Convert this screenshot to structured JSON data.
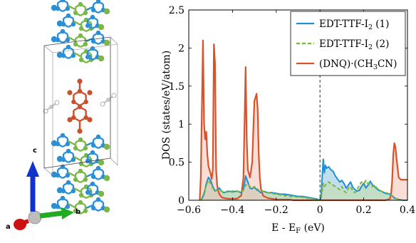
{
  "structure_panel": {
    "axis_a": "a",
    "axis_b": "b",
    "axis_c": "c",
    "colors": {
      "molecule_1": "#2b8fd6",
      "molecule_2": "#7ab648",
      "acceptor": "#c8502a",
      "solvent": "#c8c8c8",
      "axis_a": "#cc1111",
      "axis_b": "#22aa22",
      "axis_c": "#1133cc"
    }
  },
  "chart_data": {
    "type": "area",
    "xlabel_main": "E - E",
    "xlabel_sub": "F",
    "xlabel_unit": " (eV)",
    "ylabel": "DOS (states/eV/atom)",
    "xlim": [
      -0.6,
      0.4
    ],
    "ylim": [
      0,
      2.5
    ],
    "x_ticks": [
      -0.6,
      -0.4,
      -0.2,
      0,
      0.2,
      0.4
    ],
    "x_tick_labels": [
      "−0.6",
      "−0.4",
      "−0.2",
      "0",
      "0.2",
      "0.4"
    ],
    "y_ticks": [
      0,
      0.5,
      1,
      1.5,
      2,
      2.5
    ],
    "y_tick_labels": [
      "0",
      "0.5",
      "1",
      "1.5",
      "2",
      "2.5"
    ],
    "fermi_level": 0,
    "legend_position": "top-right",
    "series": [
      {
        "legend_parts": [
          "EDT-TTF-I",
          "2",
          " (1)"
        ],
        "color": "#1f8fd4",
        "fill": "#8ec3df",
        "style": "solid",
        "x": [
          -0.55,
          -0.54,
          -0.53,
          -0.52,
          -0.51,
          -0.5,
          -0.49,
          -0.48,
          -0.47,
          -0.46,
          -0.45,
          -0.44,
          -0.42,
          -0.4,
          -0.38,
          -0.36,
          -0.35,
          -0.34,
          -0.33,
          -0.32,
          -0.31,
          -0.3,
          -0.29,
          -0.28,
          -0.27,
          -0.26,
          -0.24,
          -0.22,
          -0.2,
          -0.18,
          -0.16,
          -0.14,
          -0.12,
          -0.1,
          -0.08,
          -0.06,
          -0.04,
          -0.02,
          0,
          0.005,
          0.01,
          0.015,
          0.02,
          0.025,
          0.03,
          0.04,
          0.05,
          0.06,
          0.07,
          0.08,
          0.09,
          0.1,
          0.11,
          0.12,
          0.13,
          0.14,
          0.15,
          0.16,
          0.17,
          0.18,
          0.19,
          0.2,
          0.21,
          0.22,
          0.23,
          0.24,
          0.25,
          0.26,
          0.27,
          0.28,
          0.3,
          0.32,
          0.33,
          0.34,
          0.35,
          0.36,
          0.38,
          0.4
        ],
        "y": [
          0,
          0.02,
          0.08,
          0.22,
          0.3,
          0.26,
          0.18,
          0.12,
          0.14,
          0.16,
          0.12,
          0.1,
          0.12,
          0.11,
          0.12,
          0.1,
          0.14,
          0.32,
          0.24,
          0.16,
          0.15,
          0.17,
          0.14,
          0.12,
          0.1,
          0.12,
          0.1,
          0.1,
          0.09,
          0.08,
          0.08,
          0.07,
          0.06,
          0.05,
          0.05,
          0.04,
          0.03,
          0.02,
          0,
          0.04,
          0.3,
          0.54,
          0.36,
          0.46,
          0.42,
          0.44,
          0.4,
          0.38,
          0.32,
          0.28,
          0.24,
          0.26,
          0.22,
          0.16,
          0.2,
          0.24,
          0.17,
          0.14,
          0.12,
          0.13,
          0.18,
          0.22,
          0.16,
          0.2,
          0.25,
          0.2,
          0.18,
          0.15,
          0.13,
          0.12,
          0.09,
          0.08,
          0.06,
          0.03,
          0.02,
          0.01,
          0,
          0
        ]
      },
      {
        "legend_parts": [
          "EDT-TTF-I",
          "2",
          " (2)"
        ],
        "color": "#7ab63a",
        "fill": "#c5dfa8",
        "style": "dashed",
        "x": [
          -0.55,
          -0.54,
          -0.53,
          -0.52,
          -0.51,
          -0.5,
          -0.49,
          -0.48,
          -0.47,
          -0.46,
          -0.45,
          -0.44,
          -0.42,
          -0.4,
          -0.38,
          -0.36,
          -0.35,
          -0.34,
          -0.33,
          -0.32,
          -0.31,
          -0.3,
          -0.29,
          -0.28,
          -0.27,
          -0.26,
          -0.24,
          -0.22,
          -0.2,
          -0.18,
          -0.16,
          -0.14,
          -0.12,
          -0.1,
          -0.08,
          -0.06,
          -0.04,
          -0.02,
          0,
          0.005,
          0.01,
          0.015,
          0.02,
          0.025,
          0.03,
          0.04,
          0.05,
          0.06,
          0.07,
          0.08,
          0.09,
          0.1,
          0.11,
          0.12,
          0.13,
          0.14,
          0.15,
          0.16,
          0.17,
          0.18,
          0.19,
          0.2,
          0.21,
          0.22,
          0.23,
          0.24,
          0.25,
          0.26,
          0.27,
          0.28,
          0.3,
          0.32,
          0.33,
          0.34,
          0.35,
          0.36,
          0.38,
          0.4
        ],
        "y": [
          0,
          0.03,
          0.1,
          0.2,
          0.26,
          0.22,
          0.16,
          0.12,
          0.13,
          0.14,
          0.12,
          0.1,
          0.11,
          0.12,
          0.12,
          0.11,
          0.13,
          0.2,
          0.22,
          0.18,
          0.16,
          0.18,
          0.16,
          0.13,
          0.11,
          0.12,
          0.1,
          0.09,
          0.08,
          0.07,
          0.06,
          0.05,
          0.05,
          0.04,
          0.04,
          0.03,
          0.02,
          0.01,
          0,
          0.02,
          0.12,
          0.22,
          0.18,
          0.2,
          0.22,
          0.24,
          0.22,
          0.2,
          0.18,
          0.16,
          0.14,
          0.18,
          0.12,
          0.1,
          0.16,
          0.18,
          0.12,
          0.1,
          0.14,
          0.2,
          0.24,
          0.22,
          0.26,
          0.22,
          0.2,
          0.18,
          0.2,
          0.16,
          0.14,
          0.12,
          0.1,
          0.08,
          0.06,
          0.04,
          0.02,
          0.01,
          0,
          0
        ]
      },
      {
        "legend_parts": [
          "(DNQ)·(CH",
          "3",
          "CN)"
        ],
        "color": "#d9532a",
        "fill": "#f2c3b4",
        "style": "solid",
        "x": [
          -0.55,
          -0.545,
          -0.54,
          -0.535,
          -0.53,
          -0.525,
          -0.52,
          -0.515,
          -0.51,
          -0.505,
          -0.5,
          -0.495,
          -0.49,
          -0.485,
          -0.48,
          -0.475,
          -0.47,
          -0.465,
          -0.46,
          -0.45,
          -0.44,
          -0.42,
          -0.4,
          -0.38,
          -0.36,
          -0.35,
          -0.345,
          -0.34,
          -0.335,
          -0.33,
          -0.32,
          -0.31,
          -0.3,
          -0.295,
          -0.29,
          -0.285,
          -0.28,
          -0.275,
          -0.27,
          -0.26,
          -0.24,
          -0.22,
          -0.2,
          -0.18,
          -0.16,
          -0.14,
          -0.12,
          -0.1,
          -0.08,
          -0.06,
          -0.04,
          -0.02,
          0,
          0.02,
          0.05,
          0.1,
          0.15,
          0.2,
          0.25,
          0.28,
          0.3,
          0.32,
          0.325,
          0.33,
          0.335,
          0.34,
          0.345,
          0.35,
          0.36,
          0.37,
          0.38,
          0.4
        ],
        "y": [
          0,
          0.3,
          1.2,
          2.1,
          1.0,
          0.8,
          0.9,
          0.6,
          0.45,
          0.4,
          0.35,
          0.28,
          0.4,
          2.05,
          1.8,
          0.4,
          0.2,
          0.12,
          0.08,
          0.04,
          0.03,
          0.02,
          0.02,
          0.02,
          0.06,
          0.3,
          1.0,
          1.75,
          0.8,
          0.4,
          0.3,
          0.5,
          1.3,
          1.35,
          1.4,
          1.2,
          0.6,
          0.3,
          0.15,
          0.06,
          0.03,
          0.02,
          0.01,
          0.01,
          0.01,
          0.01,
          0,
          0,
          0,
          0,
          0,
          0,
          0,
          0,
          0,
          0,
          0,
          0,
          0,
          0,
          0,
          0.02,
          0.08,
          0.25,
          0.6,
          0.75,
          0.7,
          0.55,
          0.3,
          0.27,
          0.27,
          0.27
        ]
      }
    ]
  }
}
